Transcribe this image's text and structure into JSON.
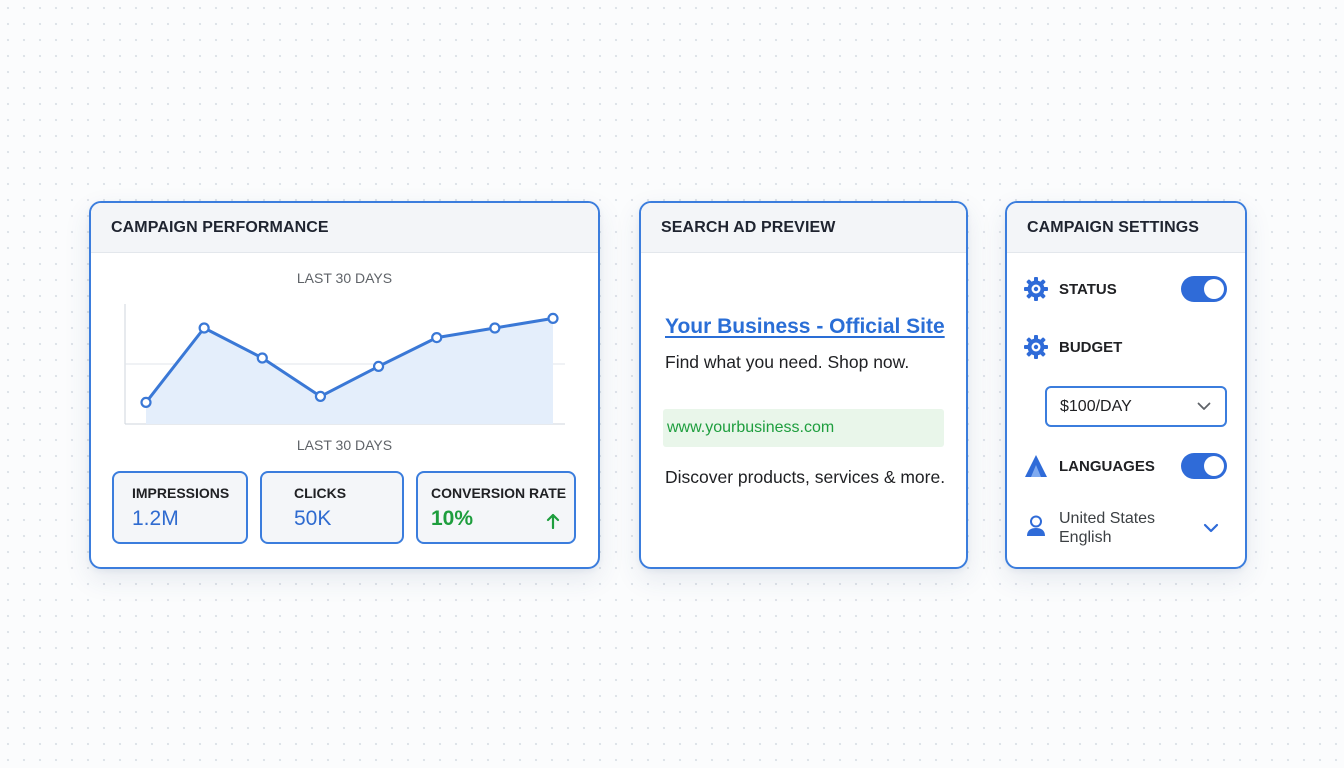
{
  "performance": {
    "title": "CAMPAIGN PERFORMANCE",
    "caption_top": "LAST 30 DAYS",
    "caption_bottom": "LAST 30 DAYS",
    "metrics": [
      {
        "label": "IMPRESSIONS",
        "value": "1.2M"
      },
      {
        "label": "CLICKS",
        "value": "50K"
      },
      {
        "label": "CONVERSION RATE",
        "value": "10%",
        "trend": "up"
      }
    ]
  },
  "chart_data": {
    "type": "area",
    "title": "LAST 30 DAYS",
    "xlabel": "LAST 30 DAYS",
    "ylabel": "",
    "grid": true,
    "ylim": [
      0,
      100
    ],
    "x": [
      1,
      2,
      3,
      4,
      5,
      6,
      7,
      8
    ],
    "values": [
      18,
      80,
      55,
      23,
      48,
      72,
      80,
      88
    ],
    "colors": {
      "line": "#3a78d6",
      "fill": "#e4eefb",
      "grid": "#e2e6eb",
      "axis": "#cfd5dc"
    }
  },
  "ad_preview": {
    "title": "SEARCH AD PREVIEW",
    "headline": "Your Business - Official Site",
    "description": "Find what you need. Shop now.",
    "url": "www.yourbusiness.com",
    "extra": "Discover products, services & more."
  },
  "settings": {
    "title": "CAMPAIGN SETTINGS",
    "status": {
      "label": "STATUS",
      "icon": "gear-icon",
      "enabled": true
    },
    "budget": {
      "label": "BUDGET",
      "icon": "gear-icon",
      "value": "$100/DAY"
    },
    "languages": {
      "label": "LANGUAGES",
      "icon": "languages-icon",
      "enabled": true
    },
    "locale": {
      "line1": "United States",
      "line2": "English",
      "icon": "user-icon"
    }
  },
  "colors": {
    "accent": "#3b7ddd",
    "link": "#2a6ed6",
    "positive": "#1e9e3e",
    "url_bg": "#e9f6ea",
    "toggle_on": "#2f6bd8"
  }
}
